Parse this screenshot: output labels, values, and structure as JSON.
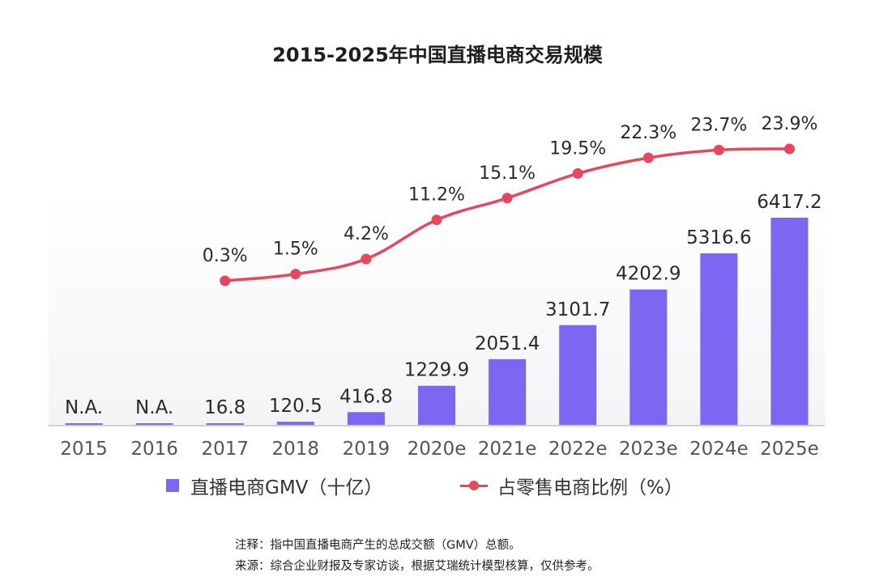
{
  "chart_data": {
    "type": "bar",
    "title": "2015-2025年中国直播电商交易规模",
    "categories": [
      "2015",
      "2016",
      "2017",
      "2018",
      "2019",
      "2020e",
      "2021e",
      "2022e",
      "2023e",
      "2024e",
      "2025e"
    ],
    "series": [
      {
        "name": "直播电商GMV（十亿）",
        "type": "bar",
        "color": "#7b67f2",
        "values": [
          0,
          0,
          16.8,
          120.5,
          416.8,
          1229.9,
          2051.4,
          3101.7,
          4202.9,
          5316.6,
          6417.2
        ],
        "labels": [
          "N.A.",
          "N.A.",
          "16.8",
          "120.5",
          "416.8",
          "1229.9",
          "2051.4",
          "3101.7",
          "4202.9",
          "5316.6",
          "6417.2"
        ]
      },
      {
        "name": "占零售电商比例（%）",
        "type": "line",
        "color": "#e5485c",
        "values": [
          null,
          null,
          0.3,
          1.5,
          4.2,
          11.2,
          15.1,
          19.5,
          22.3,
          23.7,
          23.9
        ],
        "labels": [
          "",
          "",
          "0.3%",
          "1.5%",
          "4.2%",
          "11.2%",
          "15.1%",
          "19.5%",
          "22.3%",
          "23.7%",
          "23.9%"
        ]
      }
    ],
    "xlabel": "",
    "ylabel": "",
    "grid": false,
    "legend_position": "bottom"
  },
  "notes": {
    "note": "注释：指中国直播电商产生的总成交额（GMV）总额。",
    "source": "来源：综合企业财报及专家访谈，根据艾瑞统计模型核算，仅供参考。"
  }
}
